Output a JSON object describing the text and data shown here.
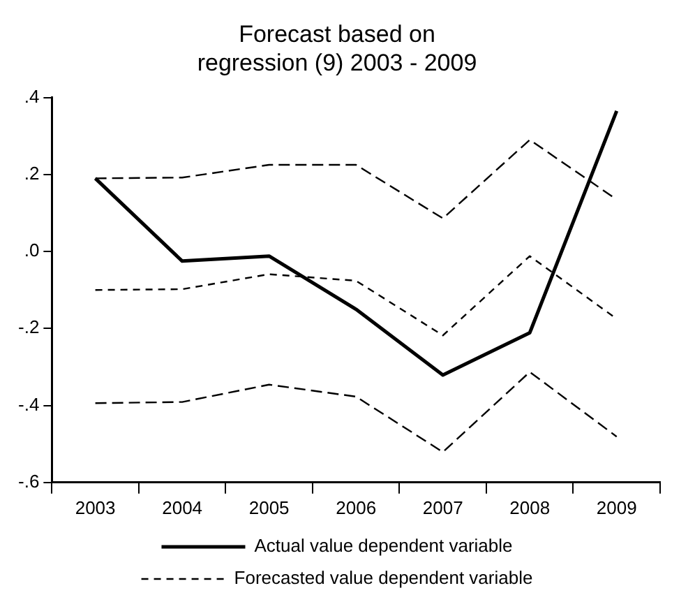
{
  "chart_data": {
    "type": "line",
    "title": "Forecast based on\nregression (9) 2003 - 2009",
    "categories": [
      "2003",
      "2004",
      "2005",
      "2006",
      "2007",
      "2008",
      "2009"
    ],
    "series": [
      {
        "name": "Actual value dependent variable",
        "color": "#000000",
        "line_style": "solid",
        "values": [
          0.19,
          -0.025,
          -0.012,
          -0.15,
          -0.321,
          -0.211,
          0.365
        ]
      },
      {
        "name": "Forecasted value dependent variable",
        "color": "#000000",
        "line_style": "dashed",
        "values": [
          -0.1,
          -0.098,
          -0.059,
          -0.076,
          -0.218,
          -0.012,
          -0.175
        ]
      },
      {
        "color": "#000000",
        "line_style": "dashed",
        "values": [
          0.19,
          0.192,
          0.225,
          0.225,
          0.086,
          0.29,
          0.135
        ]
      },
      {
        "color": "#000000",
        "line_style": "dashed",
        "values": [
          -0.394,
          -0.391,
          -0.346,
          -0.377,
          -0.521,
          -0.313,
          -0.481
        ]
      }
    ],
    "ylim": [
      -0.6,
      0.4
    ],
    "yticks": [
      {
        "value": -0.6,
        "label": "-.6"
      },
      {
        "value": -0.4,
        "label": "-.4"
      },
      {
        "value": -0.2,
        "label": "-.2"
      },
      {
        "value": 0,
        "label": ".0"
      },
      {
        "value": 0.2,
        "label": ".2"
      },
      {
        "value": 0.4,
        "label": ".4"
      }
    ],
    "grid": false,
    "legend": "bottom",
    "marker": "none"
  }
}
